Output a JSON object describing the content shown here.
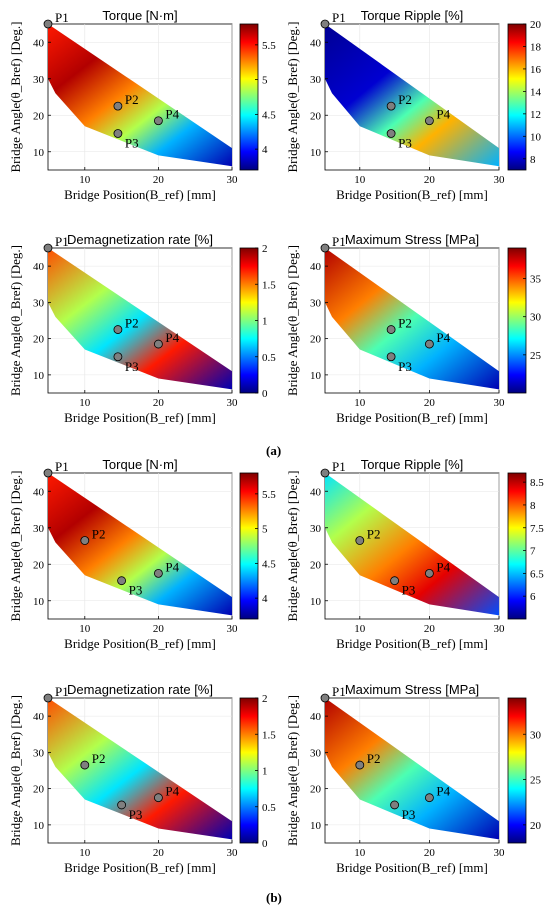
{
  "panel_labels": [
    "(a)",
    "(b)"
  ],
  "colormap": [
    "#00007f",
    "#0000ff",
    "#007fff",
    "#00ffff",
    "#7fff7f",
    "#ffff00",
    "#ff7f00",
    "#ff0000",
    "#7f0000"
  ],
  "chart_data": [
    {
      "type": "heatmap",
      "group": "(a)",
      "title": "Torque [N·m]",
      "xlabel": "Bridge Position(B_ref) [mm]",
      "ylabel": "Bridge Angle(θ_Bref) [Deg.]",
      "xlim": [
        5,
        30
      ],
      "ylim": [
        5,
        45
      ],
      "xticks": [
        "10",
        "20",
        "30"
      ],
      "yticks": [
        "10",
        "20",
        "30",
        "40"
      ],
      "colorbar_ticks": [
        "4",
        "4.5",
        "5",
        "5.5"
      ],
      "colorbar_range": [
        3.7,
        5.8
      ],
      "points": [
        {
          "name": "P1",
          "x": 5,
          "y": 45
        },
        {
          "name": "P2",
          "x": 14.5,
          "y": 22.5
        },
        {
          "name": "P3",
          "x": 14.5,
          "y": 15
        },
        {
          "name": "P4",
          "x": 20,
          "y": 18.5
        }
      ]
    },
    {
      "type": "heatmap",
      "group": "(a)",
      "title": "Torque Ripple [%]",
      "xlabel": "Bridge Position(B_ref) [mm]",
      "ylabel": "Bridge Angle(θ_Bref) [Deg.]",
      "xlim": [
        5,
        30
      ],
      "ylim": [
        5,
        45
      ],
      "xticks": [
        "10",
        "20",
        "30"
      ],
      "yticks": [
        "10",
        "20",
        "30",
        "40"
      ],
      "colorbar_ticks": [
        "8",
        "10",
        "12",
        "14",
        "16",
        "18",
        "20"
      ],
      "colorbar_range": [
        7,
        20
      ],
      "points": [
        {
          "name": "P1",
          "x": 5,
          "y": 45
        },
        {
          "name": "P2",
          "x": 14.5,
          "y": 22.5
        },
        {
          "name": "P3",
          "x": 14.5,
          "y": 15
        },
        {
          "name": "P4",
          "x": 20,
          "y": 18.5
        }
      ]
    },
    {
      "type": "heatmap",
      "group": "(a)",
      "title": "Demagnetization rate [%]",
      "xlabel": "Bridge Position(B_ref) [mm]",
      "ylabel": "Bridge Angle(θ_Bref) [Deg.]",
      "xlim": [
        5,
        30
      ],
      "ylim": [
        5,
        45
      ],
      "xticks": [
        "10",
        "20",
        "30"
      ],
      "yticks": [
        "10",
        "20",
        "30",
        "40"
      ],
      "colorbar_ticks": [
        "0",
        "0.5",
        "1",
        "1.5",
        "2"
      ],
      "colorbar_range": [
        0,
        2
      ],
      "points": [
        {
          "name": "P1",
          "x": 5,
          "y": 45
        },
        {
          "name": "P2",
          "x": 14.5,
          "y": 22.5
        },
        {
          "name": "P3",
          "x": 14.5,
          "y": 15
        },
        {
          "name": "P4",
          "x": 20,
          "y": 18.5
        }
      ]
    },
    {
      "type": "heatmap",
      "group": "(a)",
      "title": "Maximum Stress [MPa]",
      "xlabel": "Bridge Position(B_ref) [mm]",
      "ylabel": "Bridge Angle(θ_Bref) [Deg.]",
      "xlim": [
        5,
        30
      ],
      "ylim": [
        5,
        45
      ],
      "xticks": [
        "10",
        "20",
        "30"
      ],
      "yticks": [
        "10",
        "20",
        "30",
        "40"
      ],
      "colorbar_ticks": [
        "25",
        "30",
        "35"
      ],
      "colorbar_range": [
        20,
        39
      ],
      "points": [
        {
          "name": "P1",
          "x": 5,
          "y": 45
        },
        {
          "name": "P2",
          "x": 14.5,
          "y": 22.5
        },
        {
          "name": "P3",
          "x": 14.5,
          "y": 15
        },
        {
          "name": "P4",
          "x": 20,
          "y": 18.5
        }
      ]
    },
    {
      "type": "heatmap",
      "group": "(b)",
      "title": "Torque [N·m]",
      "xlabel": "Bridge Position(B_ref) [mm]",
      "ylabel": "Bridge Angle(θ_Bref) [Deg.]",
      "xlim": [
        5,
        30
      ],
      "ylim": [
        5,
        45
      ],
      "xticks": [
        "10",
        "20",
        "30"
      ],
      "yticks": [
        "10",
        "20",
        "30",
        "40"
      ],
      "colorbar_ticks": [
        "4",
        "4.5",
        "5",
        "5.5"
      ],
      "colorbar_range": [
        3.7,
        5.8
      ],
      "points": [
        {
          "name": "P1",
          "x": 5,
          "y": 45
        },
        {
          "name": "P2",
          "x": 10,
          "y": 26.5
        },
        {
          "name": "P3",
          "x": 15,
          "y": 15.5
        },
        {
          "name": "P4",
          "x": 20,
          "y": 17.5
        }
      ]
    },
    {
      "type": "heatmap",
      "group": "(b)",
      "title": "Torque Ripple [%]",
      "xlabel": "Bridge Position(B_ref) [mm]",
      "ylabel": "Bridge Angle(θ_Bref) [Deg.]",
      "xlim": [
        5,
        30
      ],
      "ylim": [
        5,
        45
      ],
      "xticks": [
        "10",
        "20",
        "30"
      ],
      "yticks": [
        "10",
        "20",
        "30",
        "40"
      ],
      "colorbar_ticks": [
        "6",
        "6.5",
        "7",
        "7.5",
        "8",
        "8.5"
      ],
      "colorbar_range": [
        5.5,
        8.7
      ],
      "points": [
        {
          "name": "P1",
          "x": 5,
          "y": 45
        },
        {
          "name": "P2",
          "x": 10,
          "y": 26.5
        },
        {
          "name": "P3",
          "x": 15,
          "y": 15.5
        },
        {
          "name": "P4",
          "x": 20,
          "y": 17.5
        }
      ]
    },
    {
      "type": "heatmap",
      "group": "(b)",
      "title": "Demagnetization rate [%]",
      "xlabel": "Bridge Position(B_ref) [mm]",
      "ylabel": "Bridge Angle(θ_Bref) [Deg.]",
      "xlim": [
        5,
        30
      ],
      "ylim": [
        5,
        45
      ],
      "xticks": [
        "10",
        "20",
        "30"
      ],
      "yticks": [
        "10",
        "20",
        "30",
        "40"
      ],
      "colorbar_ticks": [
        "0",
        "0.5",
        "1",
        "1.5",
        "2"
      ],
      "colorbar_range": [
        0,
        2
      ],
      "points": [
        {
          "name": "P1",
          "x": 5,
          "y": 45
        },
        {
          "name": "P2",
          "x": 10,
          "y": 26.5
        },
        {
          "name": "P3",
          "x": 15,
          "y": 15.5
        },
        {
          "name": "P4",
          "x": 20,
          "y": 17.5
        }
      ]
    },
    {
      "type": "heatmap",
      "group": "(b)",
      "title": "Maximum Stress [MPa]",
      "xlabel": "Bridge Position(B_ref) [mm]",
      "ylabel": "Bridge Angle(θ_Bref) [Deg.]",
      "xlim": [
        5,
        30
      ],
      "ylim": [
        5,
        45
      ],
      "xticks": [
        "10",
        "20",
        "30"
      ],
      "yticks": [
        "10",
        "20",
        "30",
        "40"
      ],
      "colorbar_ticks": [
        "20",
        "25",
        "30"
      ],
      "colorbar_range": [
        18,
        34
      ],
      "points": [
        {
          "name": "P1",
          "x": 5,
          "y": 45
        },
        {
          "name": "P2",
          "x": 10,
          "y": 26.5
        },
        {
          "name": "P3",
          "x": 15,
          "y": 15.5
        },
        {
          "name": "P4",
          "x": 20,
          "y": 17.5
        }
      ]
    }
  ]
}
